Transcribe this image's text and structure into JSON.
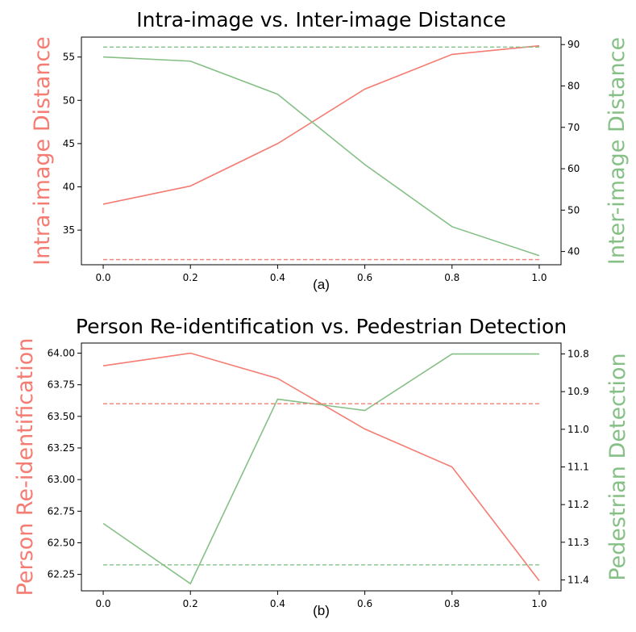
{
  "colors": {
    "red": "#f47c72",
    "green": "#86c086",
    "axis": "#000000"
  },
  "chart_data": [
    {
      "type": "line",
      "title": "Intra-image vs. Inter-image Distance",
      "caption": "(a)",
      "x": [
        0.0,
        0.2,
        0.4,
        0.6,
        0.8,
        1.0
      ],
      "xticks": [
        "0.0",
        "0.2",
        "0.4",
        "0.6",
        "0.8",
        "1.0"
      ],
      "xlim": [
        -0.05,
        1.05
      ],
      "left_axis": {
        "label": "Intra-image Distance",
        "ylim": [
          31.0,
          57.3
        ],
        "ticks": [
          35,
          40,
          45,
          50,
          55
        ],
        "tick_labels": [
          "35",
          "40",
          "45",
          "50",
          "55"
        ]
      },
      "right_axis": {
        "label": "Inter-image Distance",
        "ylim": [
          36.8,
          91.8
        ],
        "ticks": [
          40,
          50,
          60,
          70,
          80,
          90
        ],
        "tick_labels": [
          "40",
          "50",
          "60",
          "70",
          "80",
          "90"
        ]
      },
      "series": [
        {
          "axis": "left",
          "color": "#f47c72",
          "style": "solid",
          "values": [
            38.0,
            40.1,
            45.0,
            51.3,
            55.3,
            56.3
          ]
        },
        {
          "axis": "right",
          "color": "#86c086",
          "style": "solid",
          "values": [
            87.0,
            86.0,
            78.0,
            61.0,
            46.0,
            39.0
          ]
        },
        {
          "axis": "left",
          "color": "#f47c72",
          "style": "dashed",
          "values": [
            31.6,
            31.6,
            31.6,
            31.6,
            31.6,
            31.6
          ]
        },
        {
          "axis": "right",
          "color": "#86c086",
          "style": "dashed",
          "values": [
            89.4,
            89.4,
            89.4,
            89.4,
            89.4,
            89.4
          ]
        }
      ]
    },
    {
      "type": "line",
      "title": "Person Re-identification vs. Pedestrian Detection",
      "caption": "(b)",
      "x": [
        0.0,
        0.2,
        0.4,
        0.6,
        0.8,
        1.0
      ],
      "xticks": [
        "0.0",
        "0.2",
        "0.4",
        "0.6",
        "0.8",
        "1.0"
      ],
      "xlim": [
        -0.05,
        1.05
      ],
      "left_axis": {
        "label": "Person Re-identification",
        "ylim": [
          62.12,
          64.08
        ],
        "ticks": [
          62.25,
          62.5,
          62.75,
          63.0,
          63.25,
          63.5,
          63.75,
          64.0
        ],
        "tick_labels": [
          "62.25",
          "62.50",
          "62.75",
          "63.00",
          "63.25",
          "63.50",
          "63.75",
          "64.00"
        ]
      },
      "right_axis": {
        "label": "Pedestrian Detection",
        "inverted": true,
        "ylim": [
          10.771,
          11.429
        ],
        "ticks": [
          10.8,
          10.9,
          11.0,
          11.1,
          11.2,
          11.3,
          11.4
        ],
        "tick_labels": [
          "10.8",
          "10.9",
          "11.0",
          "11.1",
          "11.2",
          "11.3",
          "11.4"
        ]
      },
      "series": [
        {
          "axis": "left",
          "color": "#f47c72",
          "style": "solid",
          "values": [
            63.9,
            64.0,
            63.8,
            63.4,
            63.1,
            62.2
          ]
        },
        {
          "axis": "right",
          "color": "#86c086",
          "style": "solid",
          "values": [
            11.25,
            11.41,
            10.92,
            10.95,
            10.8,
            10.8
          ]
        },
        {
          "axis": "left",
          "color": "#f47c72",
          "style": "dashed",
          "values": [
            63.6,
            63.6,
            63.6,
            63.6,
            63.6,
            63.6
          ]
        },
        {
          "axis": "right",
          "color": "#86c086",
          "style": "dashed",
          "values": [
            11.36,
            11.36,
            11.36,
            11.36,
            11.36,
            11.36
          ]
        }
      ]
    }
  ]
}
